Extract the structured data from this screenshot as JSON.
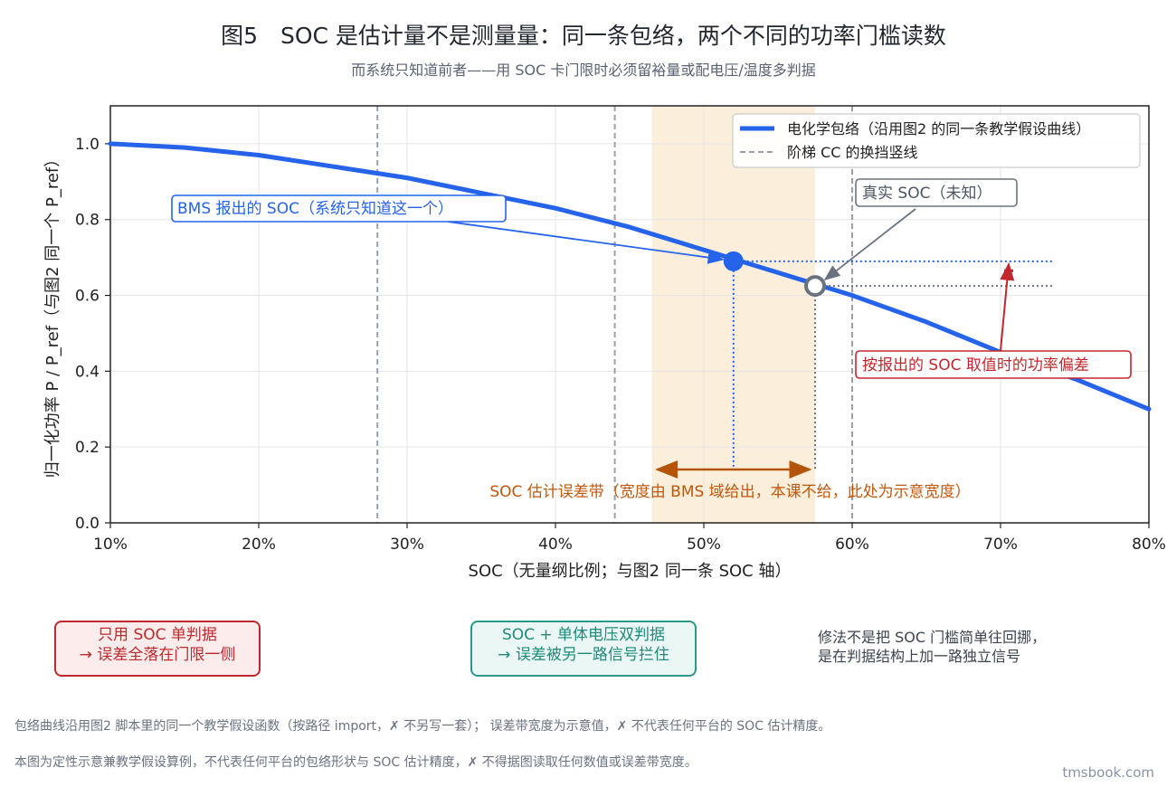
{
  "title": "图5　SOC 是估计量不是测量量：同一条包络，两个不同的功率门槛读数",
  "subtitle": "而系统只知道前者——用 SOC 卡门限时必须留裕量或配电压/温度多判据",
  "chart_data": {
    "type": "line",
    "xlabel": "SOC（无量纲比例；与图2 同一条 SOC 轴）",
    "ylabel": "归一化功率 P / P_ref（与图2 同一个 P_ref）",
    "xlim": [
      0.1,
      0.8
    ],
    "ylim": [
      0.0,
      1.1
    ],
    "x_ticks": [
      0.1,
      0.2,
      0.3,
      0.4,
      0.5,
      0.6,
      0.7,
      0.8
    ],
    "x_tick_labels": [
      "10%",
      "20%",
      "30%",
      "40%",
      "50%",
      "60%",
      "70%",
      "80%"
    ],
    "y_ticks": [
      0.0,
      0.2,
      0.4,
      0.6,
      0.8,
      1.0
    ],
    "y_tick_labels": [
      "0.0",
      "0.2",
      "0.4",
      "0.6",
      "0.8",
      "1.0"
    ],
    "grid": true,
    "legend_position": "top-right",
    "legend": [
      {
        "label": "电化学包络（沿用图2 的同一条教学假设曲线）",
        "style": "solid",
        "color": "#2563eb"
      },
      {
        "label": "阶梯 CC 的换挡竖线",
        "style": "dashed",
        "color": "#9aa0aa"
      }
    ],
    "series": [
      {
        "name": "电化学包络（沿用图2 的同一条教学假设曲线）",
        "color": "#2563eb",
        "x": [
          0.1,
          0.15,
          0.2,
          0.25,
          0.3,
          0.35,
          0.4,
          0.45,
          0.5,
          0.55,
          0.6,
          0.65,
          0.7,
          0.75,
          0.8
        ],
        "y": [
          1.0,
          0.99,
          0.97,
          0.94,
          0.91,
          0.87,
          0.83,
          0.78,
          0.72,
          0.66,
          0.6,
          0.53,
          0.45,
          0.38,
          0.3
        ]
      }
    ],
    "step_lines_x": [
      0.28,
      0.44,
      0.6
    ],
    "error_band": {
      "x_range": [
        0.465,
        0.575
      ],
      "color": "#f5dcb0"
    },
    "reported_point": {
      "x": 0.52,
      "y": 0.69,
      "label": "BMS 报出的 SOC（系统只知道这一个）",
      "color": "#2563eb"
    },
    "true_point": {
      "x": 0.575,
      "y": 0.625,
      "label": "真实 SOC（未知）",
      "color": "#6b7280"
    },
    "power_bias_label": "按报出的 SOC 取值时的功率偏差",
    "error_band_label": "SOC 估计误差带（宽度由 BMS 域给出，本课不给，此处为示意宽度）",
    "colors": {
      "accent": "#2563eb",
      "error": "#c0282d",
      "band_text": "#c2570c",
      "grey": "#6b7280"
    }
  },
  "callouts": {
    "red_box": [
      "只用 SOC 单判据",
      "→ 误差全落在门限一侧"
    ],
    "green_box": [
      "SOC + 单体电压双判据",
      "→ 误差被另一路信号拦住"
    ],
    "note": [
      "修法不是把 SOC 门槛简单往回挪，",
      "是在判据结构上加一路独立信号"
    ]
  },
  "footnotes": [
    "包络曲线沿用图2 脚本里的同一个教学假设函数（按路径 import，✗ 不另写一套）； 误差带宽度为示意值，✗ 不代表任何平台的 SOC 估计精度。",
    "本图为定性示意兼教学假设算例，不代表任何平台的包络形状与 SOC 估计精度，✗ 不得据图读取任何数值或误差带宽度。"
  ],
  "brand": "tmsbook.com"
}
